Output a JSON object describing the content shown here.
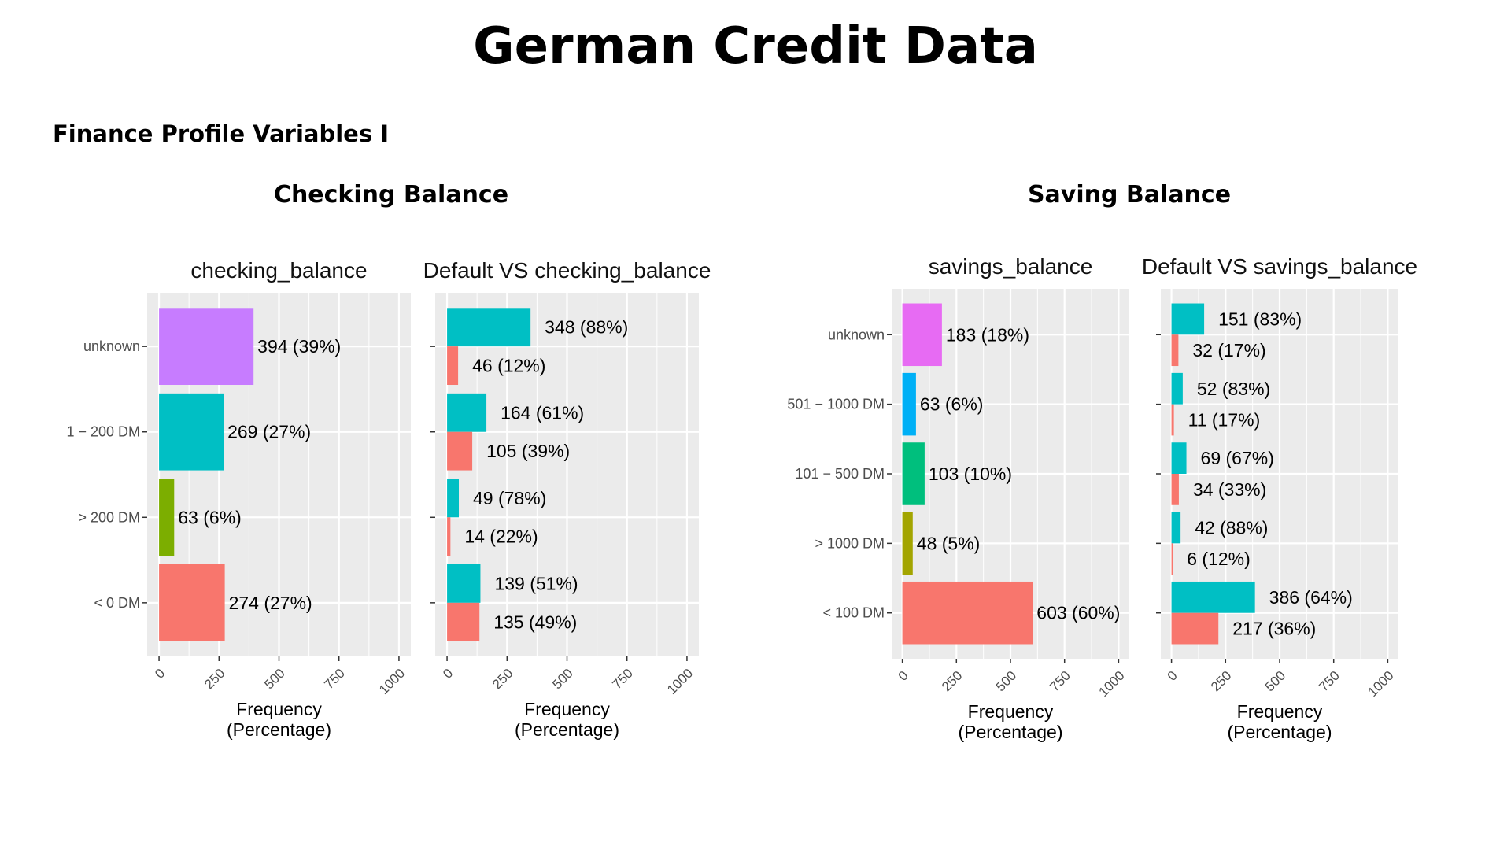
{
  "slide": {
    "title": "German Credit Data",
    "subtitle": "Finance Profile Variables I",
    "sections": [
      "Checking Balance",
      "Saving Balance"
    ]
  },
  "colors": {
    "panel_bg": "#EBEBEB",
    "grid": "#FFFFFF",
    "default_yes": "#00BFC4",
    "default_no": "#F8766D"
  },
  "chart_data": [
    {
      "type": "bar",
      "orientation": "horizontal",
      "title": "checking_balance",
      "xlabel": "Frequency\n(Percentage)",
      "xlim": [
        0,
        1000
      ],
      "xticks": [
        0,
        250,
        500,
        750,
        1000
      ],
      "categories": [
        "unknown",
        "1 − 200 DM",
        "> 200 DM",
        "< 0 DM"
      ],
      "values": [
        394,
        269,
        63,
        274
      ],
      "labels": [
        "394 (39%)",
        "269 (27%)",
        "63 (6%)",
        "274 (27%)"
      ],
      "colors": [
        "#C77CFF",
        "#00BFC4",
        "#7CAE00",
        "#F8766D"
      ]
    },
    {
      "type": "bar",
      "orientation": "horizontal",
      "title": "Default VS checking_balance",
      "xlabel": "Frequency\n(Percentage)",
      "xlim": [
        0,
        1000
      ],
      "xticks": [
        0,
        250,
        500,
        750,
        1000
      ],
      "categories": [
        "unknown",
        "1 − 200 DM",
        "> 200 DM",
        "< 0 DM"
      ],
      "series": [
        {
          "values": [
            348,
            164,
            49,
            139
          ],
          "labels": [
            "348 (88%)",
            "164 (61%)",
            "49 (78%)",
            "139 (51%)"
          ],
          "color": "#00BFC4"
        },
        {
          "values": [
            46,
            105,
            14,
            135
          ],
          "labels": [
            "46 (12%)",
            "105 (39%)",
            "14 (22%)",
            "135 (49%)"
          ],
          "color": "#F8766D"
        }
      ]
    },
    {
      "type": "bar",
      "orientation": "horizontal",
      "title": "savings_balance",
      "xlabel": "Frequency\n(Percentage)",
      "xlim": [
        0,
        1000
      ],
      "xticks": [
        0,
        250,
        500,
        750,
        1000
      ],
      "categories": [
        "unknown",
        "501 − 1000 DM",
        "101 − 500 DM",
        "> 1000 DM",
        "< 100 DM"
      ],
      "values": [
        183,
        63,
        103,
        48,
        603
      ],
      "labels": [
        "183 (18%)",
        "63 (6%)",
        "103 (10%)",
        "48 (5%)",
        "603 (60%)"
      ],
      "colors": [
        "#E76BF3",
        "#00B0F6",
        "#00BF7D",
        "#A3A500",
        "#F8766D"
      ]
    },
    {
      "type": "bar",
      "orientation": "horizontal",
      "title": "Default VS savings_balance",
      "xlabel": "Frequency\n(Percentage)",
      "xlim": [
        0,
        1000
      ],
      "xticks": [
        0,
        250,
        500,
        750,
        1000
      ],
      "categories": [
        "unknown",
        "501 − 1000 DM",
        "101 − 500 DM",
        "> 1000 DM",
        "< 100 DM"
      ],
      "series": [
        {
          "values": [
            151,
            52,
            69,
            42,
            386
          ],
          "labels": [
            "151 (83%)",
            "52 (83%)",
            "69 (67%)",
            "42 (88%)",
            "386 (64%)"
          ],
          "color": "#00BFC4"
        },
        {
          "values": [
            32,
            11,
            34,
            6,
            217
          ],
          "labels": [
            "32 (17%)",
            "11 (17%)",
            "34 (33%)",
            "6 (12%)",
            "217 (36%)"
          ],
          "color": "#F8766D"
        }
      ]
    }
  ]
}
